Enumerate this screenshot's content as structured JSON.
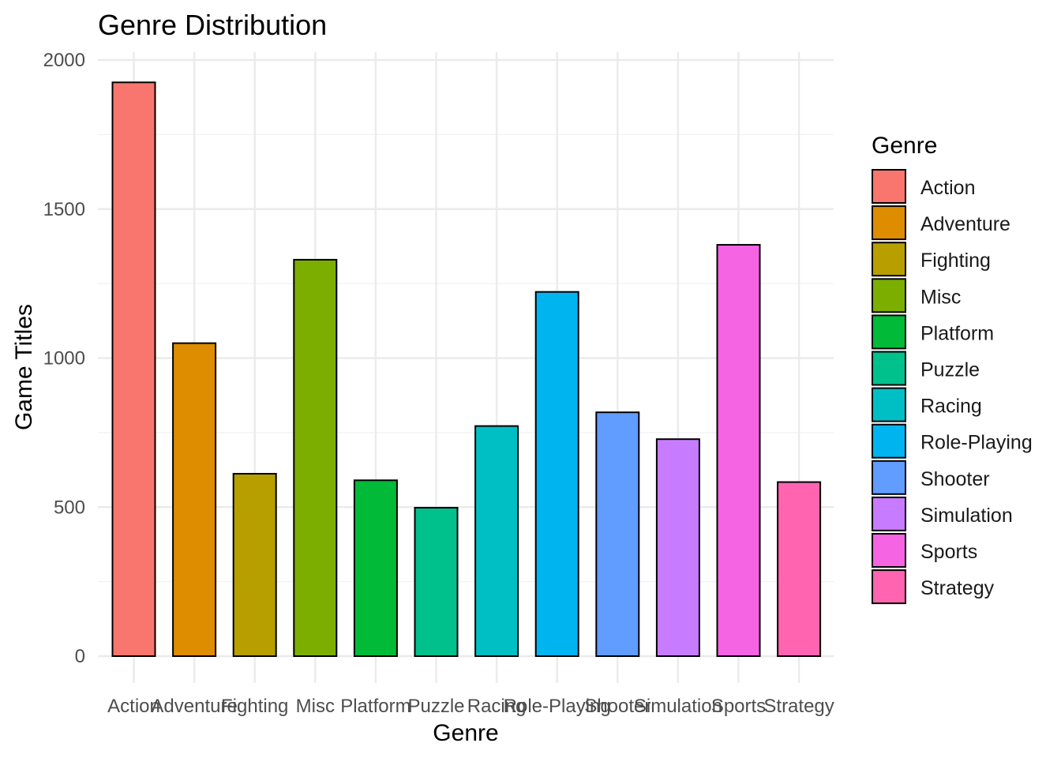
{
  "chart_data": {
    "type": "bar",
    "title": "Genre Distribution",
    "xlabel": "Genre",
    "ylabel": "Game Titles",
    "ylim": [
      0,
      2000
    ],
    "yticks": [
      0,
      500,
      1000,
      1500,
      2000
    ],
    "grid": true,
    "legend_position": "right",
    "legend_title": "Genre",
    "categories": [
      "Action",
      "Adventure",
      "Fighting",
      "Misc",
      "Platform",
      "Puzzle",
      "Racing",
      "Role-Playing",
      "Shooter",
      "Simulation",
      "Sports",
      "Strategy"
    ],
    "values": [
      1925,
      1050,
      612,
      1330,
      590,
      498,
      772,
      1222,
      818,
      728,
      1380,
      584
    ],
    "colors": [
      "#F8766D",
      "#DE8C00",
      "#B79F00",
      "#7CAE00",
      "#00BA38",
      "#00C08B",
      "#00BFC4",
      "#00B4F0",
      "#619CFF",
      "#C77CFF",
      "#F564E3",
      "#FF64B0"
    ]
  }
}
